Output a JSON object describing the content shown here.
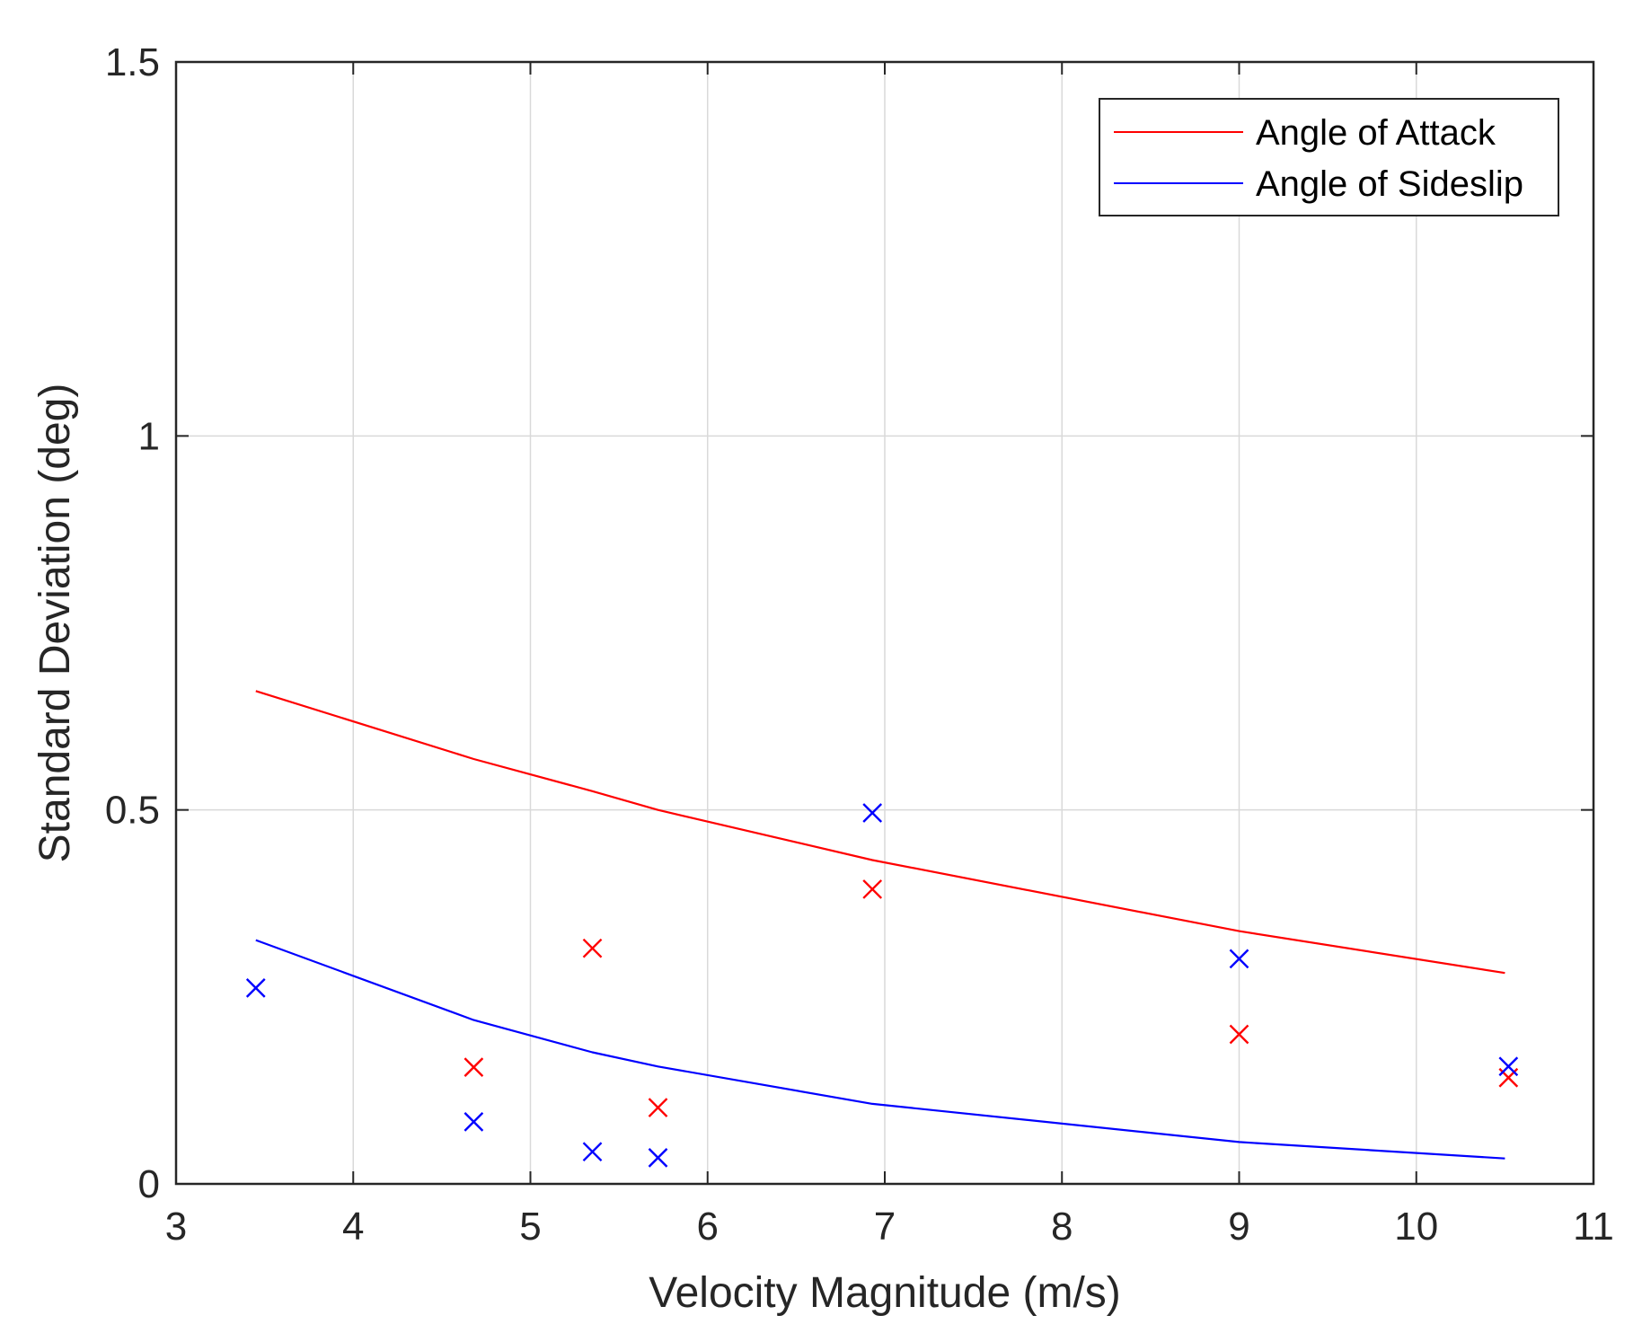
{
  "chart_data": {
    "type": "line",
    "title": "",
    "xlabel": "Velocity Magnitude (m/s)",
    "ylabel": "Standard Deviation (deg)",
    "xlim": [
      3,
      11
    ],
    "ylim": [
      0,
      1.5
    ],
    "xticks": [
      "3",
      "4",
      "5",
      "6",
      "7",
      "8",
      "9",
      "10",
      "11"
    ],
    "yticks": [
      "0",
      "0.5",
      "1",
      "1.5"
    ],
    "grid": true,
    "legend_position": "top-right",
    "colors": {
      "attack": "#ff0000",
      "sideslip": "#0000ff",
      "grid": "#d9d9d9",
      "axis": "#262626"
    },
    "series": [
      {
        "name": "Angle of Attack",
        "color": "#ff0000",
        "line": {
          "x": [
            3.45,
            4.68,
            5.35,
            5.72,
            6.93,
            9.0,
            10.5
          ],
          "y": [
            0.659,
            0.568,
            0.525,
            0.5,
            0.433,
            0.338,
            0.282
          ]
        },
        "points": {
          "x": [
            4.68,
            5.35,
            5.72,
            6.93,
            9.0,
            10.52
          ],
          "y": [
            0.156,
            0.315,
            0.102,
            0.394,
            0.2,
            0.142
          ]
        }
      },
      {
        "name": "Angle of Sideslip",
        "color": "#0000ff",
        "line": {
          "x": [
            3.45,
            4.68,
            5.35,
            5.72,
            6.93,
            9.0,
            10.5
          ],
          "y": [
            0.326,
            0.219,
            0.176,
            0.157,
            0.107,
            0.056,
            0.034
          ]
        },
        "points": {
          "x": [
            3.45,
            4.68,
            5.35,
            5.72,
            6.93,
            9.0,
            10.52
          ],
          "y": [
            0.262,
            0.083,
            0.043,
            0.035,
            0.496,
            0.301,
            0.157
          ]
        }
      }
    ]
  }
}
